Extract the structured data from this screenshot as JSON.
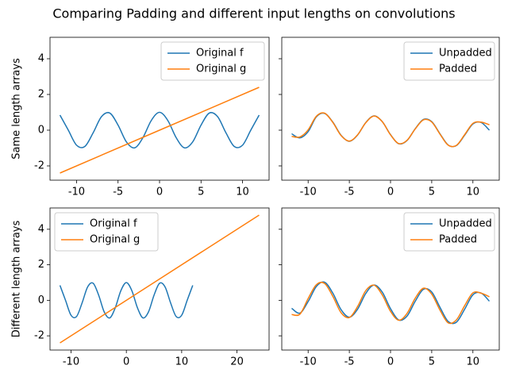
{
  "title": "Comparing Padding and different input lengths on convolutions",
  "chart_data": [
    {
      "type": "line",
      "ylabel": "Same length arrays",
      "legend": "upper right",
      "ytick_labels": true,
      "xlim": [
        -13.2,
        13.2
      ],
      "ylim": [
        -2.8,
        5.2
      ],
      "xticks": [
        -10,
        -5,
        0,
        5,
        10
      ],
      "yticks": [
        -2,
        0,
        2,
        4
      ],
      "series": [
        {
          "name": "Original f",
          "color": "#1f77b4",
          "x": [
            -12,
            -11,
            -10,
            -9,
            -8,
            -7,
            -6,
            -5,
            -4,
            -3,
            -2,
            -1,
            0,
            1,
            2,
            3,
            4,
            5,
            6,
            7,
            8,
            9,
            10,
            11,
            12
          ],
          "values": [
            0.844,
            0.004,
            -0.839,
            -0.911,
            -0.146,
            0.754,
            0.96,
            0.284,
            -0.654,
            -0.99,
            -0.416,
            0.54,
            1,
            0.54,
            -0.416,
            -0.99,
            -0.654,
            0.284,
            0.96,
            0.754,
            -0.146,
            -0.911,
            -0.839,
            0.004,
            0.844
          ]
        },
        {
          "name": "Original g",
          "color": "#ff7f0e",
          "x": [
            -12,
            12
          ],
          "values": [
            -2.4,
            2.4
          ]
        }
      ]
    },
    {
      "type": "line",
      "legend": "upper right",
      "ytick_labels": false,
      "xlim": [
        -13.2,
        13.2
      ],
      "ylim": [
        -2.8,
        5.2
      ],
      "xticks": [
        -10,
        -5,
        0,
        5,
        10
      ],
      "yticks": [
        -2,
        0,
        2,
        4
      ],
      "x": [
        -12,
        -11,
        -10,
        -9,
        -8,
        -7,
        -6,
        -5,
        -4,
        -3,
        -2,
        -1,
        0,
        1,
        2,
        3,
        4,
        5,
        6,
        7,
        8,
        9,
        10,
        11,
        12
      ],
      "series": [
        {
          "name": "Unpadded",
          "color": "#1f77b4",
          "values": [
            -0.2,
            -0.43,
            -0.08,
            0.75,
            0.94,
            0.45,
            -0.29,
            -0.62,
            -0.27,
            0.43,
            0.8,
            0.48,
            -0.25,
            -0.76,
            -0.58,
            0.08,
            0.6,
            0.48,
            -0.2,
            -0.83,
            -0.86,
            -0.28,
            0.35,
            0.43,
            0.0
          ]
        },
        {
          "name": "Padded",
          "color": "#ff7f0e",
          "values": [
            -0.35,
            -0.38,
            0.02,
            0.78,
            0.95,
            0.43,
            -0.3,
            -0.61,
            -0.26,
            0.42,
            0.79,
            0.47,
            -0.26,
            -0.75,
            -0.57,
            0.07,
            0.58,
            0.46,
            -0.22,
            -0.84,
            -0.85,
            -0.25,
            0.38,
            0.45,
            0.3
          ]
        }
      ]
    },
    {
      "type": "line",
      "ylabel": "Different length arrays",
      "legend": "upper left",
      "ytick_labels": true,
      "xlim": [
        -13.8,
        25.8
      ],
      "ylim": [
        -2.8,
        5.2
      ],
      "xticks": [
        -10,
        0,
        10,
        20
      ],
      "yticks": [
        -2,
        0,
        2,
        4
      ],
      "series": [
        {
          "name": "Original f",
          "color": "#1f77b4",
          "x": [
            -12,
            -11,
            -10,
            -9,
            -8,
            -7,
            -6,
            -5,
            -4,
            -3,
            -2,
            -1,
            0,
            1,
            2,
            3,
            4,
            5,
            6,
            7,
            8,
            9,
            10,
            11,
            12
          ],
          "values": [
            0.844,
            0.004,
            -0.839,
            -0.911,
            -0.146,
            0.754,
            0.96,
            0.284,
            -0.654,
            -0.99,
            -0.416,
            0.54,
            1,
            0.54,
            -0.416,
            -0.99,
            -0.654,
            0.284,
            0.96,
            0.754,
            -0.146,
            -0.911,
            -0.839,
            0.004,
            0.844
          ]
        },
        {
          "name": "Original g",
          "color": "#ff7f0e",
          "x": [
            -12,
            24
          ],
          "values": [
            -2.4,
            4.8
          ]
        }
      ]
    },
    {
      "type": "line",
      "legend": "upper right",
      "ytick_labels": false,
      "xlim": [
        -13.2,
        13.2
      ],
      "ylim": [
        -2.8,
        5.2
      ],
      "xticks": [
        -10,
        -5,
        0,
        5,
        10
      ],
      "yticks": [
        -2,
        0,
        2,
        4
      ],
      "x": [
        -12,
        -11,
        -10,
        -9,
        -8,
        -7,
        -6,
        -5,
        -4,
        -3,
        -2,
        -1,
        0,
        1,
        2,
        3,
        4,
        5,
        6,
        7,
        8,
        9,
        10,
        11,
        12
      ],
      "series": [
        {
          "name": "Unpadded",
          "color": "#1f77b4",
          "values": [
            -0.45,
            -0.72,
            -0.07,
            0.78,
            1.02,
            0.4,
            -0.53,
            -0.95,
            -0.5,
            0.39,
            0.86,
            0.46,
            -0.47,
            -1.11,
            -0.89,
            -0.05,
            0.62,
            0.47,
            -0.39,
            -1.19,
            -1.23,
            -0.5,
            0.31,
            0.41,
            -0.05
          ]
        },
        {
          "name": "Padded",
          "color": "#ff7f0e",
          "values": [
            -0.8,
            -0.78,
            0.1,
            0.88,
            0.95,
            0.22,
            -0.7,
            -0.97,
            -0.35,
            0.55,
            0.85,
            0.3,
            -0.62,
            -1.12,
            -0.74,
            0.12,
            0.68,
            0.35,
            -0.55,
            -1.27,
            -1.1,
            -0.3,
            0.42,
            0.4,
            0.2
          ]
        }
      ]
    }
  ]
}
